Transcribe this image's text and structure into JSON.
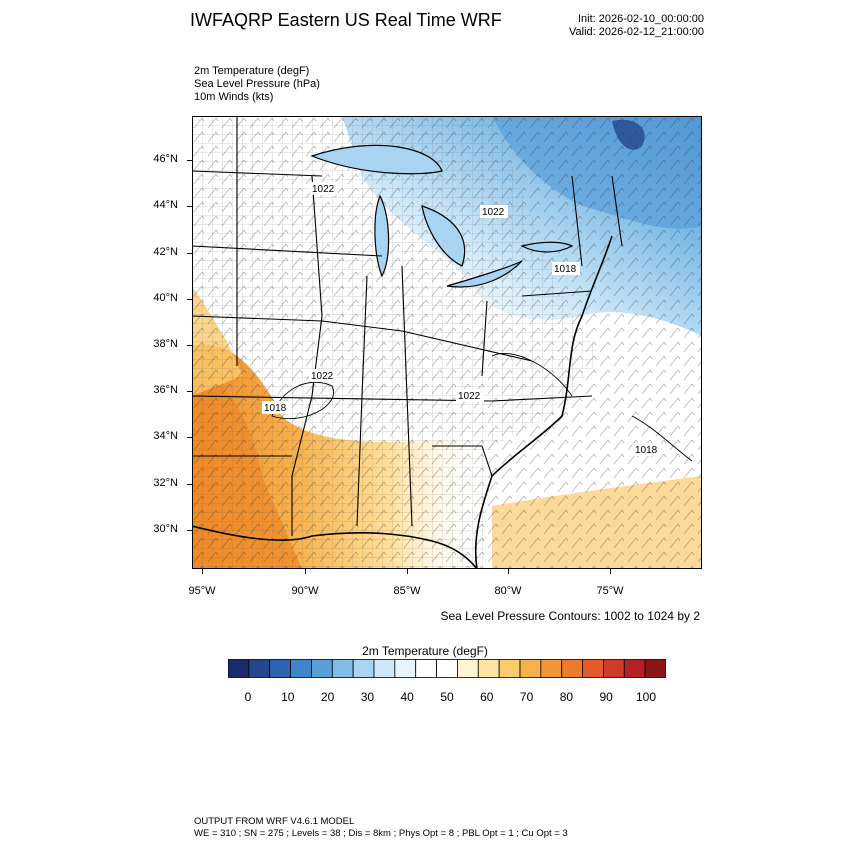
{
  "header": {
    "title": "IWFAQRP Eastern US Real Time WRF",
    "init": "Init: 2026-02-10_00:00:00",
    "valid": "Valid: 2026-02-12_21:00:00"
  },
  "fields": [
    "2m Temperature   (degF)",
    "Sea Level Pressure   (hPa)",
    "10m Winds   (kts)"
  ],
  "map": {
    "lat_ticks": [
      "46°N",
      "44°N",
      "42°N",
      "40°N",
      "38°N",
      "36°N",
      "34°N",
      "32°N",
      "30°N"
    ],
    "lon_ticks": [
      "95°W",
      "90°W",
      "85°W",
      "80°W",
      "75°W"
    ],
    "pressure_labels": [
      "1022",
      "1022",
      "1018",
      "1022",
      "1018",
      "1022",
      "1018"
    ],
    "colors": {
      "cold": "#5aa0d8",
      "cool": "#a8d4f2",
      "neutral": "#ffffff",
      "warm": "#f7b04a",
      "hot": "#ef8a2a"
    }
  },
  "contour_note": "Sea Level Pressure Contours: 1002 to 1024 by 2",
  "colorbar": {
    "title": "2m Temperature  (degF)",
    "colors": [
      "#1c2b6b",
      "#25468f",
      "#2d64b4",
      "#3e85cb",
      "#5aa0d8",
      "#7fbce6",
      "#a8d4f2",
      "#cde7f8",
      "#e9f5fc",
      "#ffffff",
      "#ffffff",
      "#fff4d2",
      "#ffe3a0",
      "#fbcb6d",
      "#f7b04a",
      "#f29638",
      "#ee7a2c",
      "#e55a2b",
      "#d43a2a",
      "#b61f24",
      "#8c1518"
    ],
    "labels": [
      "0",
      "10",
      "20",
      "30",
      "40",
      "50",
      "60",
      "70",
      "80",
      "90",
      "100"
    ]
  },
  "footer": {
    "line1": "OUTPUT FROM WRF V4.6.1 MODEL",
    "line2": "WE = 310 ; SN = 275 ; Levels = 38 ; Dis = 8km ; Phys Opt = 8 ; PBL Opt = 1 ; Cu Opt = 3"
  }
}
